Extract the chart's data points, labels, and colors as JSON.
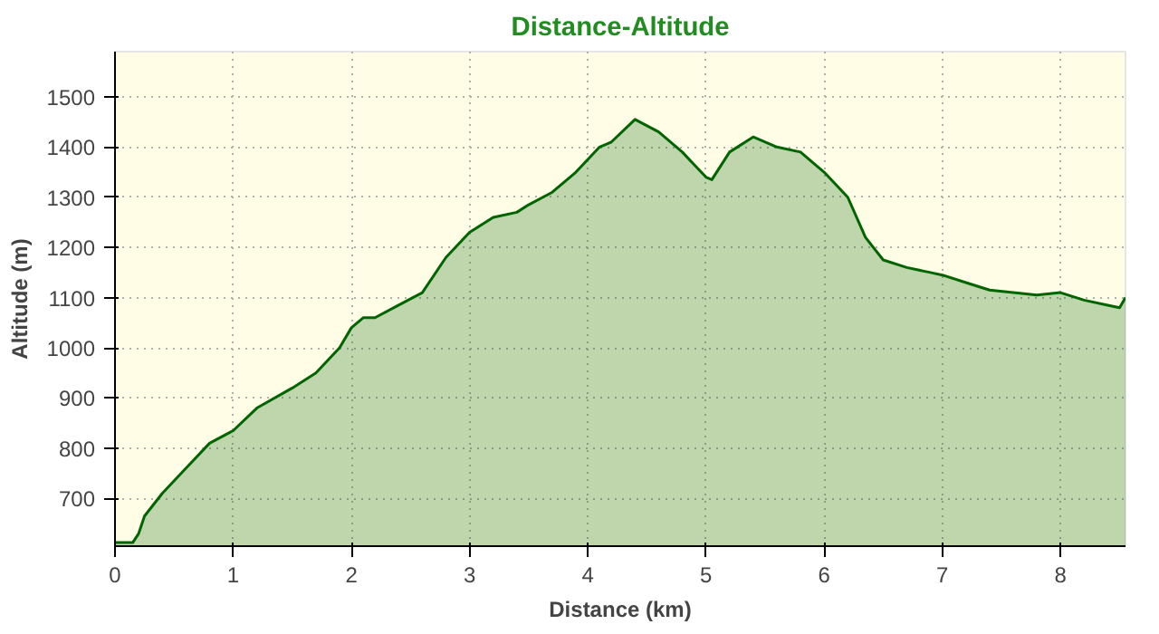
{
  "chart_data": {
    "type": "area",
    "title": "Distance-Altitude",
    "xlabel": "Distance (km)",
    "ylabel": "Altitude (m)",
    "x": [
      0,
      0.15,
      0.2,
      0.25,
      0.4,
      0.6,
      0.8,
      1.0,
      1.2,
      1.5,
      1.7,
      1.9,
      2.0,
      2.1,
      2.2,
      2.4,
      2.6,
      2.8,
      3.0,
      3.2,
      3.4,
      3.5,
      3.7,
      3.9,
      4.1,
      4.2,
      4.4,
      4.6,
      4.8,
      5.0,
      5.05,
      5.2,
      5.4,
      5.6,
      5.8,
      6.0,
      6.2,
      6.35,
      6.5,
      6.7,
      6.9,
      7.0,
      7.2,
      7.4,
      7.6,
      7.8,
      8.0,
      8.2,
      8.4,
      8.5,
      8.55
    ],
    "series": [
      {
        "color": "#006400",
        "values": [
          612,
          612,
          630,
          665,
          710,
          760,
          810,
          835,
          880,
          920,
          950,
          1000,
          1040,
          1060,
          1060,
          1085,
          1110,
          1180,
          1230,
          1260,
          1270,
          1285,
          1310,
          1350,
          1400,
          1410,
          1455,
          1430,
          1390,
          1340,
          1335,
          1390,
          1420,
          1400,
          1390,
          1350,
          1300,
          1220,
          1175,
          1160,
          1150,
          1145,
          1130,
          1115,
          1110,
          1105,
          1110,
          1095,
          1085,
          1080,
          1100
        ]
      }
    ],
    "xlim": [
      0,
      8.55
    ],
    "ylim": [
      605,
      1590
    ],
    "xticks": [
      0,
      1,
      2,
      3,
      4,
      5,
      6,
      7,
      8
    ],
    "yticks": [
      700,
      800,
      900,
      1000,
      1100,
      1200,
      1300,
      1400,
      1500
    ],
    "grid": true
  }
}
